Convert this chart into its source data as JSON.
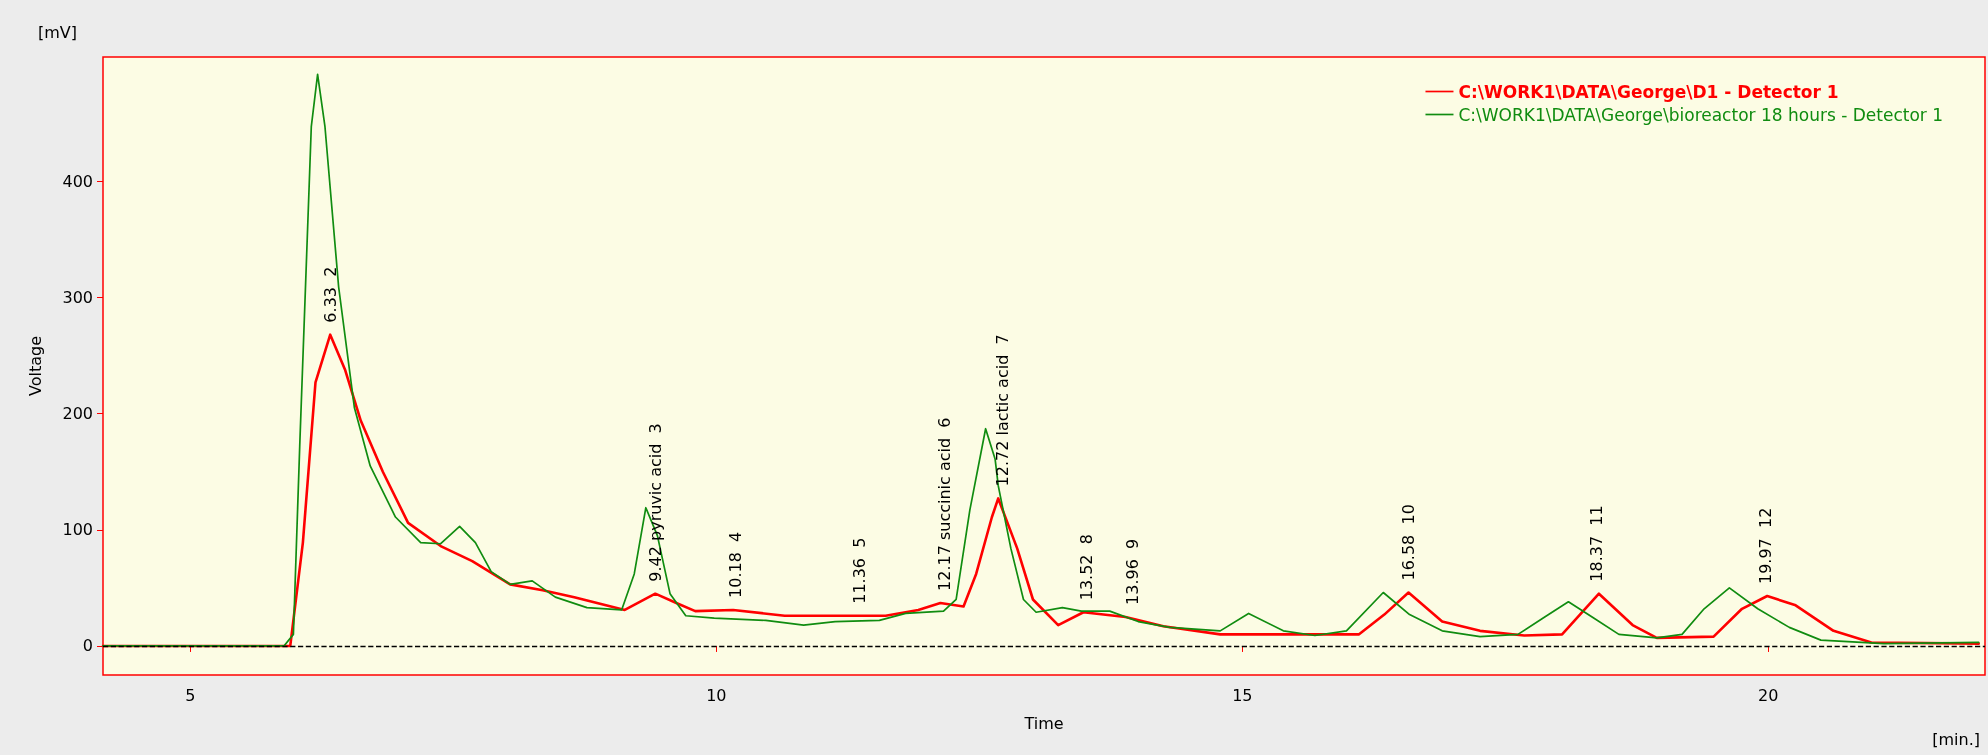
{
  "chart_data": {
    "type": "line",
    "xlabel": "Time",
    "ylabel": "Voltage",
    "xlim": [
      4.17,
      22.06
    ],
    "xticks": [
      5,
      10,
      15,
      20
    ],
    "ylim": [
      -25,
      507
    ],
    "yticks": [
      0,
      100,
      200,
      300,
      400
    ],
    "grid": false,
    "legend": "top right",
    "marker": "none",
    "line_style": "solid",
    "ref_lines": [
      {
        "axis": "y",
        "value": 0,
        "color": "#000000",
        "line_style": "dashed"
      }
    ],
    "annotations": [
      "[mV]",
      "[min.]",
      {
        "text": "6.33  2",
        "x": 6.33,
        "y": 268
      },
      {
        "text": "9.42 pyruvic acid  3",
        "x": 9.42,
        "y": 45
      },
      {
        "text": "10.18  4",
        "x": 10.18,
        "y": 31
      },
      {
        "text": "11.36  5",
        "x": 11.36,
        "y": 26
      },
      {
        "text": "12.17 succinic acid  6",
        "x": 12.17,
        "y": 37
      },
      {
        "text": "12.72 lactic acid  7",
        "x": 12.72,
        "y": 127
      },
      {
        "text": "13.52  8",
        "x": 13.52,
        "y": 29
      },
      {
        "text": "13.96  9",
        "x": 13.96,
        "y": 25
      },
      {
        "text": "16.58  10",
        "x": 16.58,
        "y": 46
      },
      {
        "text": "18.37  11",
        "x": 18.37,
        "y": 45
      },
      {
        "text": "19.97  12",
        "x": 19.97,
        "y": 43
      }
    ],
    "series": [
      {
        "name": "C:\\WORK1\\DATA\\George\\D1 - Detector 1",
        "color": "#ff0000",
        "x": [
          4.17,
          5.95,
          6.07,
          6.19,
          6.33,
          6.47,
          6.62,
          6.83,
          7.07,
          7.38,
          7.68,
          8.04,
          8.35,
          8.65,
          9.13,
          9.42,
          9.62,
          9.8,
          10.16,
          10.65,
          11.61,
          11.92,
          12.13,
          12.35,
          12.47,
          12.62,
          12.68,
          12.86,
          13.01,
          13.25,
          13.49,
          13.89,
          14.25,
          14.79,
          15.39,
          16.11,
          16.35,
          16.58,
          16.9,
          17.26,
          17.68,
          18.04,
          18.39,
          18.71,
          18.94,
          19.48,
          19.75,
          19.99,
          20.26,
          20.62,
          20.98,
          22.0
        ],
        "values": [
          0,
          0,
          89,
          227,
          268,
          238,
          194,
          150,
          106,
          86,
          73,
          53,
          48,
          42,
          31,
          45,
          37,
          30,
          31,
          26,
          26,
          31,
          37,
          34,
          62,
          111,
          127,
          84,
          40,
          18,
          29,
          25,
          17,
          10,
          10,
          10,
          27,
          46,
          21,
          13,
          9,
          10,
          45,
          18,
          7,
          8,
          32,
          43,
          35,
          13,
          3,
          2
        ]
      },
      {
        "name": "C:\\WORK1\\DATA\\George\\bioreactor 18 hours - Detector 1",
        "color": "#108c10",
        "x": [
          4.17,
          5.89,
          5.98,
          6.04,
          6.15,
          6.21,
          6.28,
          6.41,
          6.56,
          6.71,
          6.95,
          7.19,
          7.38,
          7.56,
          7.71,
          7.86,
          8.04,
          8.25,
          8.47,
          8.77,
          9.1,
          9.22,
          9.33,
          9.44,
          9.56,
          9.71,
          9.98,
          10.47,
          10.83,
          11.13,
          11.55,
          11.8,
          12.16,
          12.28,
          12.41,
          12.56,
          12.65,
          12.68,
          12.8,
          12.92,
          13.04,
          13.29,
          13.47,
          13.74,
          14.01,
          14.31,
          14.79,
          15.06,
          15.39,
          15.69,
          15.99,
          16.34,
          16.59,
          16.9,
          17.26,
          17.62,
          17.86,
          18.1,
          18.34,
          18.58,
          18.94,
          19.18,
          19.39,
          19.63,
          19.9,
          20.2,
          20.5,
          21.1,
          22.0
        ],
        "values": [
          0,
          0,
          10,
          172,
          447,
          492,
          447,
          309,
          205,
          155,
          111,
          89,
          88,
          103,
          89,
          64,
          53,
          56,
          42,
          33,
          31,
          62,
          119,
          95,
          45,
          26,
          24,
          22,
          18,
          21,
          22,
          28,
          30,
          40,
          117,
          187,
          161,
          138,
          84,
          40,
          29,
          33,
          30,
          30,
          21,
          16,
          13,
          28,
          13,
          9,
          13,
          46,
          27,
          13,
          8,
          10,
          24,
          38,
          24,
          10,
          7,
          10,
          32,
          50,
          32,
          16,
          5,
          2,
          3
        ]
      }
    ]
  }
}
